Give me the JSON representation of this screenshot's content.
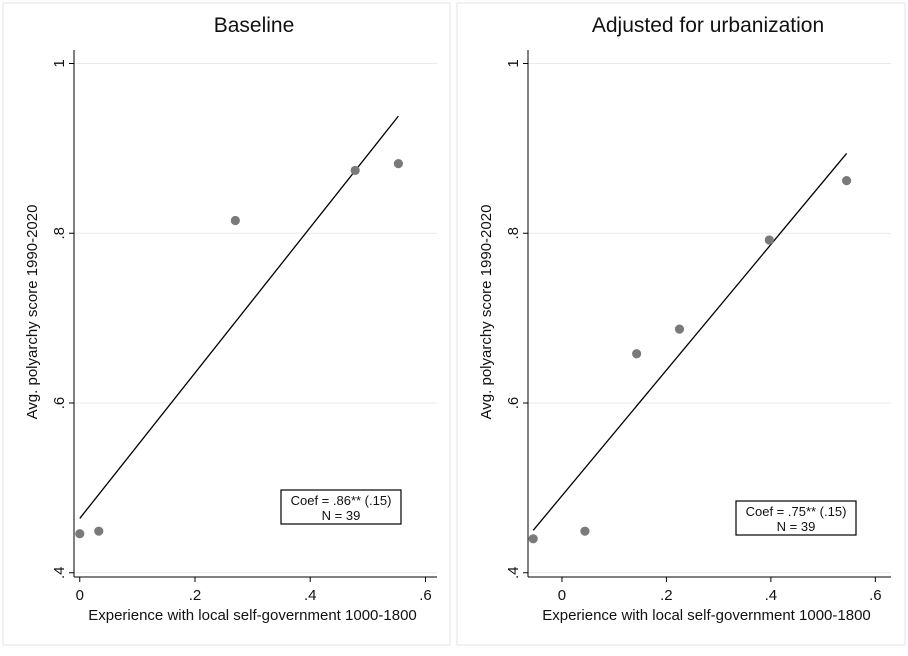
{
  "chart_data": [
    {
      "type": "scatter",
      "title": "Baseline",
      "xlabel": "Experience with local self-government 1000-1800",
      "ylabel": "Avg. polyarchy score 1990-2020",
      "xlim": [
        -0.01,
        0.62
      ],
      "ylim": [
        0.395,
        1.01
      ],
      "xticks": [
        0,
        0.2,
        0.4,
        0.6
      ],
      "xtick_labels": [
        "0",
        ".2",
        ".4",
        ".6"
      ],
      "yticks": [
        0.4,
        0.6,
        0.8,
        1.0
      ],
      "ytick_labels": [
        ".4",
        ".6",
        ".8",
        "1"
      ],
      "grid": true,
      "series": [
        {
          "points": [
            {
              "x": 0.0,
              "y": 0.446
            },
            {
              "x": 0.033,
              "y": 0.449
            },
            {
              "x": 0.27,
              "y": 0.815
            },
            {
              "x": 0.478,
              "y": 0.874
            },
            {
              "x": 0.553,
              "y": 0.882
            }
          ],
          "fit_line": {
            "x": [
              0.0,
              0.553
            ],
            "y": [
              0.464,
              0.938
            ]
          }
        }
      ],
      "annotation": {
        "line1": "Coef = .86**  (.15)",
        "line2": "N = 39"
      }
    },
    {
      "type": "scatter",
      "title": "Adjusted for urbanization",
      "xlabel": "Experience with local self-government 1000-1800",
      "ylabel": "Avg. polyarchy score 1990-2020",
      "xlim": [
        -0.065,
        0.63
      ],
      "ylim": [
        0.395,
        1.01
      ],
      "xticks": [
        0,
        0.2,
        0.4,
        0.6
      ],
      "xtick_labels": [
        "0",
        ".2",
        ".4",
        ".6"
      ],
      "yticks": [
        0.4,
        0.6,
        0.8,
        1.0
      ],
      "ytick_labels": [
        ".4",
        ".6",
        ".8",
        "1"
      ],
      "grid": true,
      "series": [
        {
          "points": [
            {
              "x": -0.055,
              "y": 0.44
            },
            {
              "x": 0.044,
              "y": 0.449
            },
            {
              "x": 0.143,
              "y": 0.658
            },
            {
              "x": 0.225,
              "y": 0.687
            },
            {
              "x": 0.397,
              "y": 0.792
            },
            {
              "x": 0.545,
              "y": 0.862
            }
          ],
          "fit_line": {
            "x": [
              -0.055,
              0.545
            ],
            "y": [
              0.45,
              0.894
            ]
          }
        }
      ],
      "annotation": {
        "line1": "Coef = .75**  (.15)",
        "line2": "N = 39"
      }
    }
  ]
}
